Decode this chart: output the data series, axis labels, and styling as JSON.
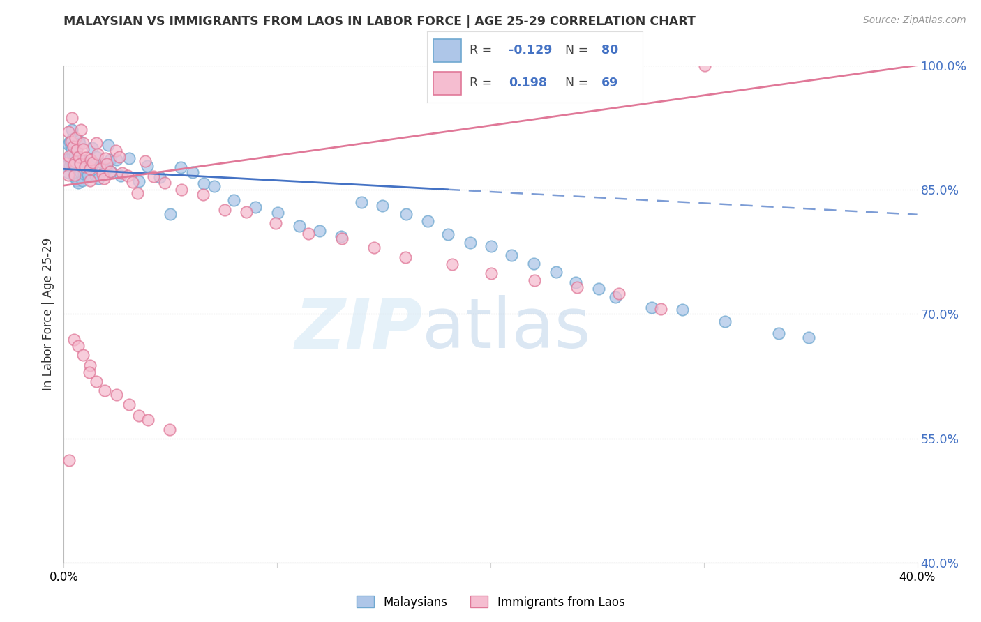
{
  "title": "MALAYSIAN VS IMMIGRANTS FROM LAOS IN LABOR FORCE | AGE 25-29 CORRELATION CHART",
  "source": "Source: ZipAtlas.com",
  "ylabel": "In Labor Force | Age 25-29",
  "xmin": 0.0,
  "xmax": 40.0,
  "ymin": 40.0,
  "ymax": 100.0,
  "yticks": [
    40.0,
    55.0,
    70.0,
    85.0,
    100.0
  ],
  "ytick_labels": [
    "40.0%",
    "55.0%",
    "70.0%",
    "85.0%",
    "100.0%"
  ],
  "blue_R": -0.129,
  "blue_N": 80,
  "pink_R": 0.198,
  "pink_N": 69,
  "blue_color": "#aec6e8",
  "blue_edge": "#6fa8d0",
  "pink_color": "#f5bdd0",
  "pink_edge": "#e07898",
  "blue_line_color": "#4472c4",
  "pink_line_color": "#e07898",
  "legend_label_blue": "Malaysians",
  "legend_label_pink": "Immigrants from Laos",
  "blue_trend": [
    0.0,
    87.5,
    40.0,
    82.0
  ],
  "blue_solid_end": 18.0,
  "pink_trend": [
    0.0,
    85.5,
    40.0,
    100.0
  ],
  "watermark_zip_color": "#dce8f5",
  "watermark_atlas_color": "#c8dff5",
  "stat_color": "#4472c4",
  "blue_scatter_x": [
    0.15,
    0.18,
    0.2,
    0.22,
    0.25,
    0.28,
    0.3,
    0.32,
    0.35,
    0.38,
    0.4,
    0.42,
    0.45,
    0.48,
    0.5,
    0.52,
    0.55,
    0.58,
    0.6,
    0.62,
    0.65,
    0.68,
    0.7,
    0.72,
    0.75,
    0.78,
    0.8,
    0.85,
    0.9,
    0.95,
    1.0,
    1.05,
    1.1,
    1.2,
    1.3,
    1.4,
    1.5,
    1.6,
    1.7,
    1.8,
    1.9,
    2.0,
    2.1,
    2.2,
    2.3,
    2.5,
    2.7,
    3.0,
    3.5,
    4.0,
    4.5,
    5.0,
    5.5,
    6.0,
    6.5,
    7.0,
    8.0,
    9.0,
    10.0,
    11.0,
    12.0,
    13.0,
    14.0,
    15.0,
    16.0,
    17.0,
    18.0,
    19.0,
    20.0,
    21.0,
    22.0,
    23.0,
    24.0,
    25.0,
    26.0,
    27.5,
    29.0,
    31.0,
    33.5,
    35.0
  ],
  "blue_scatter_y": [
    88,
    87,
    90,
    91,
    89,
    88,
    92,
    90,
    89,
    88,
    91,
    89,
    87,
    90,
    88,
    87,
    89,
    86,
    90,
    88,
    87,
    86,
    91,
    89,
    88,
    87,
    90,
    88,
    86,
    87,
    89,
    88,
    87,
    86,
    88,
    90,
    89,
    87,
    86,
    88,
    87,
    88,
    90,
    89,
    87,
    88,
    87,
    89,
    86,
    88,
    87,
    82,
    88,
    87,
    86,
    85,
    84,
    83,
    82,
    81,
    80,
    79,
    84,
    83,
    82,
    81,
    80,
    79,
    78,
    77,
    76,
    75,
    74,
    73,
    72,
    71,
    70,
    69,
    68,
    67
  ],
  "pink_scatter_x": [
    0.15,
    0.18,
    0.2,
    0.25,
    0.3,
    0.35,
    0.4,
    0.45,
    0.5,
    0.55,
    0.6,
    0.65,
    0.7,
    0.75,
    0.8,
    0.85,
    0.9,
    0.95,
    1.0,
    1.1,
    1.2,
    1.3,
    1.4,
    1.5,
    1.6,
    1.7,
    1.8,
    1.9,
    2.0,
    2.1,
    2.2,
    2.4,
    2.6,
    2.8,
    3.0,
    3.2,
    3.5,
    3.8,
    4.2,
    4.8,
    5.5,
    6.5,
    7.5,
    8.5,
    10.0,
    11.5,
    13.0,
    14.5,
    16.0,
    18.0,
    20.0,
    22.0,
    24.0,
    26.0,
    28.0,
    30.0,
    0.3,
    0.5,
    0.7,
    0.9,
    1.1,
    1.3,
    1.5,
    2.0,
    2.5,
    3.0,
    3.5,
    4.0,
    5.0
  ],
  "pink_scatter_y": [
    88,
    87,
    89,
    92,
    91,
    93,
    90,
    89,
    88,
    87,
    91,
    90,
    89,
    88,
    92,
    91,
    90,
    89,
    88,
    87,
    86,
    89,
    88,
    90,
    89,
    88,
    87,
    86,
    89,
    88,
    87,
    90,
    89,
    88,
    87,
    86,
    85,
    88,
    87,
    86,
    85,
    84,
    83,
    82,
    81,
    80,
    79,
    78,
    77,
    76,
    75,
    74,
    73,
    72,
    71,
    100,
    53,
    67,
    66,
    65,
    64,
    63,
    62,
    61,
    60,
    59,
    58,
    57,
    56
  ]
}
